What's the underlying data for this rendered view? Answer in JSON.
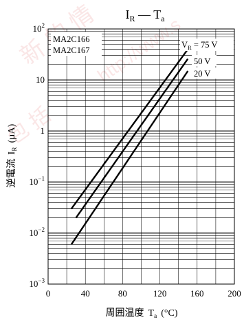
{
  "chart_data": {
    "type": "line",
    "title": {
      "main": "I",
      "main_sub": "R",
      "dash": " — ",
      "var": "T",
      "var_sub": "a"
    },
    "part_numbers": [
      "MA2C166",
      "MA2C167"
    ],
    "xlabel": {
      "text": "周囲温度",
      "var": "T",
      "var_sub": "a",
      "unit": "(°C)"
    },
    "ylabel": {
      "text": "逆電流",
      "var": "I",
      "var_sub": "R",
      "unit": "(µA)"
    },
    "xlim": [
      0,
      200
    ],
    "ylim": [
      0.001,
      100
    ],
    "yscale": "log",
    "grid": true,
    "xticks": [
      0,
      40,
      80,
      120,
      160,
      200
    ],
    "yticks": [
      {
        "value": 100,
        "base": "10",
        "exp": "2"
      },
      {
        "value": 10,
        "base": "10",
        "exp": ""
      },
      {
        "value": 1,
        "base": "1",
        "exp": ""
      },
      {
        "value": 0.1,
        "base": "10",
        "exp": "−1"
      },
      {
        "value": 0.01,
        "base": "10",
        "exp": "−2"
      },
      {
        "value": 0.001,
        "base": "10",
        "exp": "−3"
      }
    ],
    "series": [
      {
        "name": "V",
        "name_sub": "R",
        "label_suffix": " = 75 V",
        "x": [
          25,
          150
        ],
        "y": [
          0.03,
          40
        ]
      },
      {
        "name": "50 V",
        "x": [
          30,
          150
        ],
        "y": [
          0.02,
          26
        ]
      },
      {
        "name": "20 V",
        "x": [
          25,
          150
        ],
        "y": [
          0.006,
          15
        ]
      }
    ],
    "line_color": "#000000",
    "watermark_color": "#e46a6a"
  }
}
